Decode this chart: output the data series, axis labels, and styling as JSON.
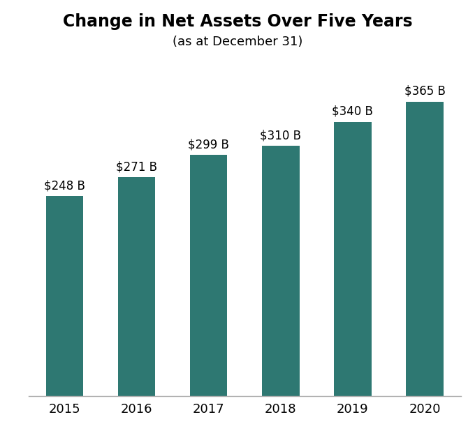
{
  "title": "Change in Net Assets Over Five Years",
  "subtitle": "(as at December 31)",
  "categories": [
    "2015",
    "2016",
    "2017",
    "2018",
    "2019",
    "2020"
  ],
  "values": [
    248,
    271,
    299,
    310,
    340,
    365
  ],
  "labels": [
    "$248 B",
    "$271 B",
    "$299 B",
    "$310 B",
    "$340 B",
    "$365 B"
  ],
  "bar_color": "#2e7872",
  "background_color": "#ffffff",
  "title_fontsize": 17,
  "subtitle_fontsize": 13,
  "label_fontsize": 12,
  "tick_fontsize": 13,
  "ylim": [
    0,
    420
  ],
  "bar_width": 0.52
}
